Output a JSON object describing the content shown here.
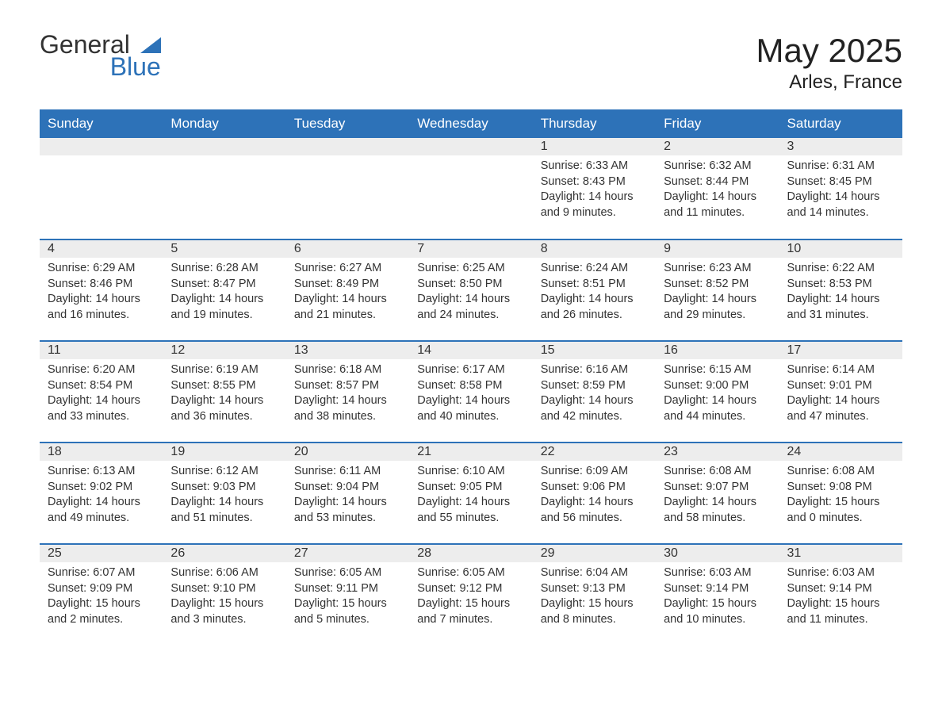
{
  "logo": {
    "text1": "General",
    "text2": "Blue"
  },
  "title": "May 2025",
  "location": "Arles, France",
  "colors": {
    "header_bg": "#2d72b8",
    "header_text": "#ffffff",
    "daynum_bg": "#ededed",
    "text": "#333333",
    "page_bg": "#ffffff",
    "row_border": "#2d72b8"
  },
  "fonts": {
    "title_size": 42,
    "location_size": 24,
    "header_size": 17,
    "daynum_size": 16,
    "body_size": 14.5
  },
  "weekdays": [
    "Sunday",
    "Monday",
    "Tuesday",
    "Wednesday",
    "Thursday",
    "Friday",
    "Saturday"
  ],
  "weeks": [
    [
      null,
      null,
      null,
      null,
      {
        "n": "1",
        "sunrise": "6:33 AM",
        "sunset": "8:43 PM",
        "daylight": "14 hours and 9 minutes."
      },
      {
        "n": "2",
        "sunrise": "6:32 AM",
        "sunset": "8:44 PM",
        "daylight": "14 hours and 11 minutes."
      },
      {
        "n": "3",
        "sunrise": "6:31 AM",
        "sunset": "8:45 PM",
        "daylight": "14 hours and 14 minutes."
      }
    ],
    [
      {
        "n": "4",
        "sunrise": "6:29 AM",
        "sunset": "8:46 PM",
        "daylight": "14 hours and 16 minutes."
      },
      {
        "n": "5",
        "sunrise": "6:28 AM",
        "sunset": "8:47 PM",
        "daylight": "14 hours and 19 minutes."
      },
      {
        "n": "6",
        "sunrise": "6:27 AM",
        "sunset": "8:49 PM",
        "daylight": "14 hours and 21 minutes."
      },
      {
        "n": "7",
        "sunrise": "6:25 AM",
        "sunset": "8:50 PM",
        "daylight": "14 hours and 24 minutes."
      },
      {
        "n": "8",
        "sunrise": "6:24 AM",
        "sunset": "8:51 PM",
        "daylight": "14 hours and 26 minutes."
      },
      {
        "n": "9",
        "sunrise": "6:23 AM",
        "sunset": "8:52 PM",
        "daylight": "14 hours and 29 minutes."
      },
      {
        "n": "10",
        "sunrise": "6:22 AM",
        "sunset": "8:53 PM",
        "daylight": "14 hours and 31 minutes."
      }
    ],
    [
      {
        "n": "11",
        "sunrise": "6:20 AM",
        "sunset": "8:54 PM",
        "daylight": "14 hours and 33 minutes."
      },
      {
        "n": "12",
        "sunrise": "6:19 AM",
        "sunset": "8:55 PM",
        "daylight": "14 hours and 36 minutes."
      },
      {
        "n": "13",
        "sunrise": "6:18 AM",
        "sunset": "8:57 PM",
        "daylight": "14 hours and 38 minutes."
      },
      {
        "n": "14",
        "sunrise": "6:17 AM",
        "sunset": "8:58 PM",
        "daylight": "14 hours and 40 minutes."
      },
      {
        "n": "15",
        "sunrise": "6:16 AM",
        "sunset": "8:59 PM",
        "daylight": "14 hours and 42 minutes."
      },
      {
        "n": "16",
        "sunrise": "6:15 AM",
        "sunset": "9:00 PM",
        "daylight": "14 hours and 44 minutes."
      },
      {
        "n": "17",
        "sunrise": "6:14 AM",
        "sunset": "9:01 PM",
        "daylight": "14 hours and 47 minutes."
      }
    ],
    [
      {
        "n": "18",
        "sunrise": "6:13 AM",
        "sunset": "9:02 PM",
        "daylight": "14 hours and 49 minutes."
      },
      {
        "n": "19",
        "sunrise": "6:12 AM",
        "sunset": "9:03 PM",
        "daylight": "14 hours and 51 minutes."
      },
      {
        "n": "20",
        "sunrise": "6:11 AM",
        "sunset": "9:04 PM",
        "daylight": "14 hours and 53 minutes."
      },
      {
        "n": "21",
        "sunrise": "6:10 AM",
        "sunset": "9:05 PM",
        "daylight": "14 hours and 55 minutes."
      },
      {
        "n": "22",
        "sunrise": "6:09 AM",
        "sunset": "9:06 PM",
        "daylight": "14 hours and 56 minutes."
      },
      {
        "n": "23",
        "sunrise": "6:08 AM",
        "sunset": "9:07 PM",
        "daylight": "14 hours and 58 minutes."
      },
      {
        "n": "24",
        "sunrise": "6:08 AM",
        "sunset": "9:08 PM",
        "daylight": "15 hours and 0 minutes."
      }
    ],
    [
      {
        "n": "25",
        "sunrise": "6:07 AM",
        "sunset": "9:09 PM",
        "daylight": "15 hours and 2 minutes."
      },
      {
        "n": "26",
        "sunrise": "6:06 AM",
        "sunset": "9:10 PM",
        "daylight": "15 hours and 3 minutes."
      },
      {
        "n": "27",
        "sunrise": "6:05 AM",
        "sunset": "9:11 PM",
        "daylight": "15 hours and 5 minutes."
      },
      {
        "n": "28",
        "sunrise": "6:05 AM",
        "sunset": "9:12 PM",
        "daylight": "15 hours and 7 minutes."
      },
      {
        "n": "29",
        "sunrise": "6:04 AM",
        "sunset": "9:13 PM",
        "daylight": "15 hours and 8 minutes."
      },
      {
        "n": "30",
        "sunrise": "6:03 AM",
        "sunset": "9:14 PM",
        "daylight": "15 hours and 10 minutes."
      },
      {
        "n": "31",
        "sunrise": "6:03 AM",
        "sunset": "9:14 PM",
        "daylight": "15 hours and 11 minutes."
      }
    ]
  ],
  "labels": {
    "sunrise": "Sunrise: ",
    "sunset": "Sunset: ",
    "daylight": "Daylight: "
  }
}
